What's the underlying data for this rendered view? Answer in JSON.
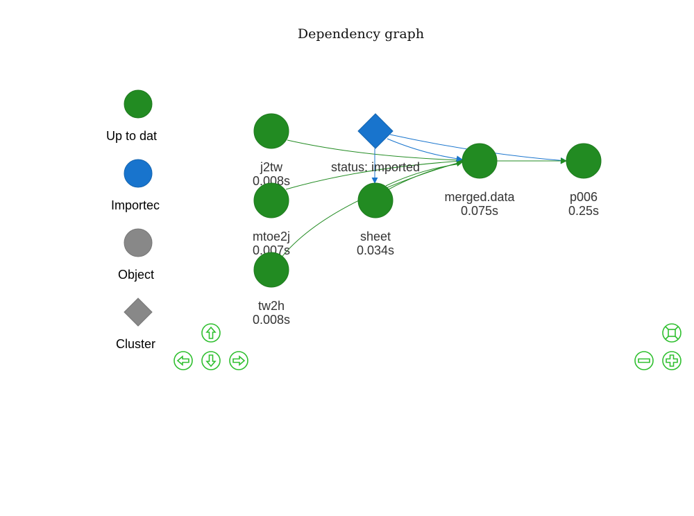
{
  "title": "Dependency graph",
  "legend": [
    {
      "label": "Up to dat",
      "shape": "dot",
      "color": "#228B22"
    },
    {
      "label": "Importec",
      "shape": "dot",
      "color": "#1874CD"
    },
    {
      "label": "Object",
      "shape": "dot",
      "color": "#888888"
    },
    {
      "label": "Cluster",
      "shape": "diamond",
      "color": "#888888"
    }
  ],
  "nodes": [
    {
      "id": "j2tw",
      "label_lines": [
        "j2tw",
        "0.008s"
      ],
      "status": "up-to-date",
      "shape": "dot"
    },
    {
      "id": "mtoe2j",
      "label_lines": [
        "mtoe2j",
        "0.007s"
      ],
      "status": "up-to-date",
      "shape": "dot"
    },
    {
      "id": "tw2h",
      "label_lines": [
        "tw2h",
        "0.008s"
      ],
      "status": "up-to-date",
      "shape": "dot"
    },
    {
      "id": "imported",
      "label_lines": [
        "status: imported"
      ],
      "status": "imported",
      "shape": "diamond"
    },
    {
      "id": "sheet",
      "label_lines": [
        "sheet",
        "0.034s"
      ],
      "status": "up-to-date",
      "shape": "dot"
    },
    {
      "id": "merged_data",
      "label_lines": [
        "merged.data",
        "0.075s"
      ],
      "status": "up-to-date",
      "shape": "dot"
    },
    {
      "id": "p006",
      "label_lines": [
        "p006",
        "0.25s"
      ],
      "status": "up-to-date",
      "shape": "dot"
    }
  ],
  "edges": [
    {
      "from": "j2tw",
      "to": "merged_data",
      "color": "#228B22"
    },
    {
      "from": "mtoe2j",
      "to": "merged_data",
      "color": "#228B22"
    },
    {
      "from": "tw2h",
      "to": "merged_data",
      "color": "#228B22"
    },
    {
      "from": "sheet",
      "to": "merged_data",
      "color": "#228B22"
    },
    {
      "from": "imported",
      "to": "sheet",
      "color": "#1874CD"
    },
    {
      "from": "imported",
      "to": "merged_data",
      "color": "#1874CD"
    },
    {
      "from": "imported",
      "to": "p006",
      "color": "#1874CD"
    },
    {
      "from": "merged_data",
      "to": "p006",
      "color": "#228B22"
    }
  ],
  "colors": {
    "up_to_date": "#228B22",
    "imported": "#1874CD",
    "object": "#888888",
    "nav": "#2fbf2f"
  },
  "navigation": [
    {
      "name": "nav-up-button",
      "icon": "arrow-up-icon"
    },
    {
      "name": "nav-left-button",
      "icon": "arrow-left-icon"
    },
    {
      "name": "nav-down-button",
      "icon": "arrow-down-icon"
    },
    {
      "name": "nav-right-button",
      "icon": "arrow-right-icon"
    },
    {
      "name": "zoom-fit-button",
      "icon": "fit-icon"
    },
    {
      "name": "zoom-out-button",
      "icon": "minus-icon"
    },
    {
      "name": "zoom-in-button",
      "icon": "plus-icon"
    }
  ]
}
